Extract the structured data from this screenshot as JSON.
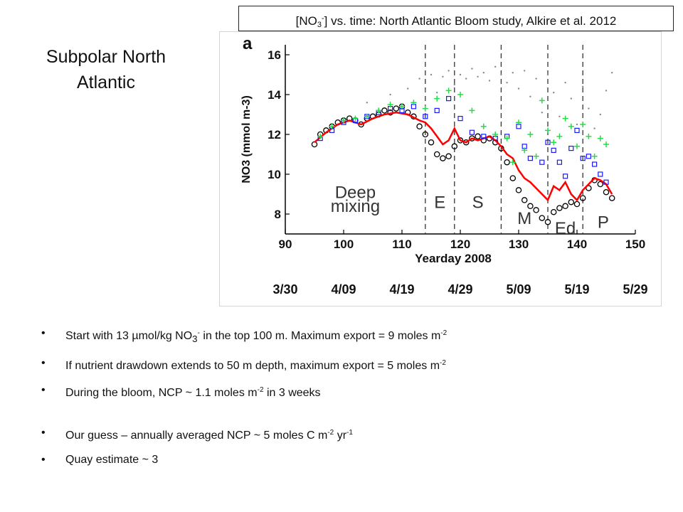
{
  "header": {
    "title_prefix": "[NO",
    "title_sub": "3",
    "title_sup": "-",
    "title_rest": "] vs. time: North Atlantic Bloom study, Alkire et al. 2012"
  },
  "region": {
    "line1": "Subpolar North",
    "line2": "Atlantic"
  },
  "chart_data": {
    "type": "scatter",
    "panel_label": "a",
    "ylabel": "NO3 (mmol m-3)",
    "xlabel": "Yearday 2008",
    "xlim": [
      90,
      150
    ],
    "ylim": [
      7,
      16.5
    ],
    "x_ticks": [
      90,
      100,
      110,
      120,
      130,
      140,
      150
    ],
    "y_ticks": [
      8,
      10,
      12,
      14,
      16
    ],
    "date_ticks": [
      {
        "x": 90,
        "label": "3/30"
      },
      {
        "x": 100,
        "label": "4/09"
      },
      {
        "x": 110,
        "label": "4/19"
      },
      {
        "x": 120,
        "label": "4/29"
      },
      {
        "x": 130,
        "label": "5/09"
      },
      {
        "x": 140,
        "label": "5/19"
      },
      {
        "x": 150,
        "label": "5/29"
      }
    ],
    "phase_lines": [
      114,
      119,
      127,
      135,
      141
    ],
    "phases": [
      {
        "x": 102,
        "y": 8.8,
        "label": "Deep"
      },
      {
        "x": 102,
        "y": 8.1,
        "label": "mixing"
      },
      {
        "x": 116.5,
        "y": 8.3,
        "label": "E"
      },
      {
        "x": 123,
        "y": 8.3,
        "label": "S"
      },
      {
        "x": 131,
        "y": 7.5,
        "label": "M"
      },
      {
        "x": 138,
        "y": 7.0,
        "label": "Ed"
      },
      {
        "x": 144.5,
        "y": 7.3,
        "label": "P"
      }
    ],
    "series": [
      {
        "marker": "circle",
        "color": "#000000",
        "x": [
          95,
          96,
          97,
          98,
          99,
          100,
          101,
          102,
          103,
          104,
          105,
          106,
          107,
          108,
          109,
          110,
          111,
          112,
          113,
          114,
          115,
          116,
          117,
          118,
          119,
          120,
          121,
          122,
          123,
          124,
          125,
          126,
          127,
          128,
          129,
          130,
          131,
          132,
          133,
          134,
          135,
          136,
          137,
          138,
          139,
          140,
          141,
          142,
          143,
          144,
          145,
          146
        ],
        "y": [
          11.5,
          12.0,
          12.2,
          12.4,
          12.6,
          12.7,
          12.8,
          12.7,
          12.5,
          12.8,
          12.9,
          13.0,
          13.2,
          13.1,
          13.3,
          13.4,
          13.1,
          12.9,
          12.4,
          12.0,
          11.6,
          11.0,
          10.8,
          10.9,
          11.4,
          11.7,
          11.6,
          11.8,
          11.9,
          11.7,
          11.8,
          11.6,
          11.3,
          10.6,
          9.8,
          9.2,
          8.7,
          8.4,
          8.2,
          7.8,
          7.6,
          8.1,
          8.3,
          8.4,
          8.6,
          8.5,
          8.8,
          9.3,
          9.7,
          9.5,
          9.1,
          8.8
        ]
      },
      {
        "marker": "line",
        "color": "#ff0000",
        "x": [
          95,
          97,
          99,
          101,
          103,
          105,
          107,
          109,
          111,
          113,
          114,
          115,
          116,
          117,
          118,
          119,
          120,
          121,
          122,
          123,
          124,
          125,
          126,
          127,
          128,
          129,
          130,
          131,
          132,
          133,
          134,
          135,
          136,
          137,
          138,
          139,
          140,
          141,
          142,
          143,
          144,
          145,
          146
        ],
        "y": [
          11.6,
          12.1,
          12.5,
          12.7,
          12.5,
          12.8,
          13.0,
          13.1,
          13.0,
          12.7,
          12.6,
          12.3,
          11.9,
          11.5,
          11.7,
          12.3,
          11.7,
          11.6,
          11.8,
          11.7,
          11.8,
          11.9,
          11.7,
          11.4,
          11.0,
          10.8,
          10.2,
          9.8,
          9.6,
          9.3,
          9.0,
          8.7,
          9.4,
          9.2,
          9.6,
          9.0,
          8.7,
          9.2,
          9.5,
          9.8,
          9.7,
          9.5,
          9.0
        ]
      },
      {
        "marker": "square",
        "color": "#1a1aff",
        "x": [
          96,
          98,
          100,
          102,
          104,
          106,
          108,
          110,
          112,
          114,
          116,
          118,
          120,
          122,
          124,
          126,
          128,
          130,
          131,
          132,
          134,
          135,
          136,
          137,
          138,
          139,
          140,
          141,
          142,
          143,
          144,
          145
        ],
        "y": [
          11.8,
          12.2,
          12.6,
          12.7,
          12.9,
          13.1,
          13.3,
          13.2,
          13.4,
          12.9,
          13.2,
          13.8,
          12.8,
          12.1,
          11.9,
          11.8,
          11.9,
          12.4,
          11.4,
          10.8,
          10.6,
          11.6,
          11.2,
          10.6,
          9.9,
          11.3,
          12.2,
          10.8,
          10.9,
          10.5,
          10.0,
          9.6
        ]
      },
      {
        "marker": "plus",
        "color": "#22dd44",
        "x": [
          96,
          98,
          100,
          102,
          104,
          106,
          108,
          110,
          112,
          114,
          116,
          118,
          120,
          122,
          124,
          126,
          128,
          129,
          130,
          131,
          132,
          133,
          134,
          135,
          136,
          137,
          138,
          139,
          140,
          141,
          142,
          143,
          144,
          145
        ],
        "y": [
          11.9,
          12.4,
          12.7,
          12.8,
          12.9,
          13.2,
          13.5,
          13.4,
          13.6,
          13.3,
          13.8,
          14.2,
          14.0,
          13.2,
          12.4,
          12.0,
          11.8,
          10.6,
          12.6,
          11.2,
          12.0,
          10.9,
          13.7,
          12.2,
          11.6,
          11.9,
          12.8,
          12.4,
          11.4,
          12.5,
          11.9,
          10.9,
          11.8,
          11.5
        ]
      },
      {
        "marker": "dot",
        "color": "#888888",
        "x": [
          104,
          108,
          111,
          113,
          114,
          115,
          116,
          117,
          118,
          119,
          120,
          121,
          122,
          123,
          124,
          125,
          126,
          127,
          128,
          129,
          130,
          131,
          132,
          133,
          134,
          135,
          136,
          137,
          138,
          139,
          140,
          141,
          142,
          143,
          144,
          145,
          146
        ],
        "y": [
          13.6,
          14.0,
          14.3,
          14.8,
          14.2,
          15.0,
          14.1,
          14.9,
          15.2,
          14.5,
          15.0,
          14.8,
          15.3,
          14.9,
          15.1,
          14.7,
          15.4,
          15.0,
          14.6,
          15.1,
          14.3,
          15.2,
          13.9,
          14.8,
          13.1,
          15.0,
          14.1,
          12.9,
          14.6,
          13.8,
          12.5,
          14.4,
          13.3,
          12.3,
          13.0,
          14.2,
          15.1
        ]
      }
    ]
  },
  "bullets": [
    {
      "text": "Start with 13 µmol/kg NO",
      "sub": "3",
      "sup": "-",
      "rest": " in the top 100 m. Maximum export = 9 moles m",
      "sup2": "-2",
      "tail": ""
    },
    {
      "text": "If nutrient drawdown extends to 50 m depth, maximum export = 5 moles m",
      "sup": "-2"
    },
    {
      "text": "During the bloom, NCP ~ 1.1 moles m",
      "sup": "-2",
      "rest": " in 3 weeks"
    },
    {
      "text": "Our guess – annually averaged NCP ~ 5 moles C m",
      "sup": "-2",
      "rest": " yr",
      "sup2": "-1"
    },
    {
      "text": "Quay estimate ~ 3"
    }
  ]
}
